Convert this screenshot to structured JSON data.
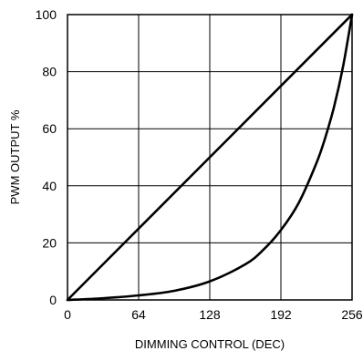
{
  "chart_data": {
    "type": "line",
    "xlabel": "DIMMING CONTROL (DEC)",
    "ylabel": "PWM OUTPUT %",
    "xlim": [
      0,
      256
    ],
    "ylim": [
      0,
      100
    ],
    "x_ticks": [
      0,
      64,
      128,
      192,
      256
    ],
    "y_ticks": [
      0,
      20,
      40,
      60,
      80,
      100
    ],
    "grid": true,
    "legend": "none",
    "series": [
      {
        "x": [
          0,
          256
        ],
        "y": [
          0,
          100
        ]
      },
      {
        "x": [
          0,
          32,
          64,
          96,
          128,
          160,
          176,
          192,
          208,
          224,
          232,
          240,
          248,
          256
        ],
        "y": [
          0,
          0.6,
          1.6,
          3.2,
          6.5,
          12.5,
          17.5,
          24.5,
          34,
          48,
          57,
          68,
          82,
          100
        ]
      }
    ]
  }
}
